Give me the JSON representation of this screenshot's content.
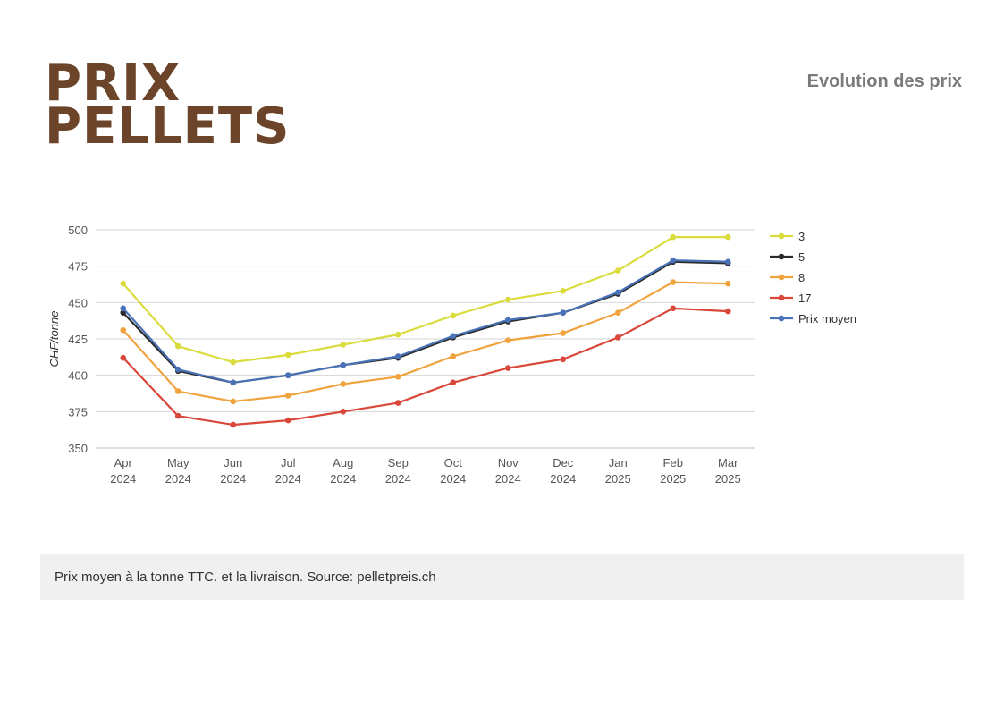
{
  "header": {
    "title_line1": "PRIX",
    "title_line2": "PELLETS",
    "subtitle": "Evolution des prix"
  },
  "footer": {
    "note": "Prix moyen à la tonne TTC. et la livraison. Source: pelletpreis.ch"
  },
  "chart_data": {
    "type": "line",
    "ylabel": "CHF/tonne",
    "xlabel": "",
    "ylim": [
      350,
      500
    ],
    "yticks": [
      350,
      375,
      400,
      425,
      450,
      475,
      500
    ],
    "grid": true,
    "legend_position": "right",
    "categories": [
      [
        "Apr",
        "2024"
      ],
      [
        "May",
        "2024"
      ],
      [
        "Jun",
        "2024"
      ],
      [
        "Jul",
        "2024"
      ],
      [
        "Aug",
        "2024"
      ],
      [
        "Sep",
        "2024"
      ],
      [
        "Oct",
        "2024"
      ],
      [
        "Nov",
        "2024"
      ],
      [
        "Dec",
        "2024"
      ],
      [
        "Jan",
        "2025"
      ],
      [
        "Feb",
        "2025"
      ],
      [
        "Mar",
        "2025"
      ]
    ],
    "series": [
      {
        "name": "3",
        "color": "#d9dc3c",
        "values": [
          463,
          420,
          409,
          414,
          421,
          428,
          441,
          452,
          458,
          472,
          495,
          495
        ]
      },
      {
        "name": "5",
        "color": "#2b2b2b",
        "values": [
          443,
          403,
          395,
          400,
          407,
          412,
          426,
          437,
          443,
          456,
          478,
          477
        ]
      },
      {
        "name": "8",
        "color": "#f0a23c",
        "values": [
          431,
          389,
          382,
          386,
          394,
          399,
          413,
          424,
          429,
          443,
          464,
          463
        ]
      },
      {
        "name": "17",
        "color": "#d9473a",
        "values": [
          412,
          372,
          366,
          369,
          375,
          381,
          395,
          405,
          411,
          426,
          446,
          444
        ]
      },
      {
        "name": "Prix moyen",
        "color": "#4a72b8",
        "values": [
          446,
          404,
          395,
          400,
          407,
          413,
          427,
          438,
          443,
          457,
          479,
          478
        ]
      }
    ]
  }
}
